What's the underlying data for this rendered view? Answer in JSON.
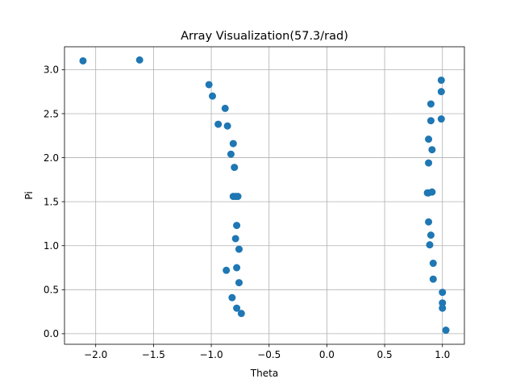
{
  "chart_data": {
    "type": "scatter",
    "title": "Array Visualization(57.3/rad)",
    "xlabel": "Theta",
    "ylabel": "Pi",
    "xlim": [
      -2.27,
      1.19
    ],
    "ylim": [
      -0.12,
      3.26
    ],
    "xticks": [
      -2.0,
      -1.5,
      -1.0,
      -0.5,
      0.0,
      0.5,
      1.0
    ],
    "xtick_labels": [
      "−2.0",
      "−1.5",
      "−1.0",
      "−0.5",
      "0.0",
      "0.5",
      "1.0"
    ],
    "yticks": [
      0.0,
      0.5,
      1.0,
      1.5,
      2.0,
      2.5,
      3.0
    ],
    "ytick_labels": [
      "0.0",
      "0.5",
      "1.0",
      "1.5",
      "2.0",
      "2.5",
      "3.0"
    ],
    "grid": true,
    "marker_color": "#1f77b4",
    "points": [
      {
        "x": -2.11,
        "y": 3.1
      },
      {
        "x": -1.62,
        "y": 3.11
      },
      {
        "x": -1.02,
        "y": 2.83
      },
      {
        "x": -0.99,
        "y": 2.7
      },
      {
        "x": -0.88,
        "y": 2.56
      },
      {
        "x": -0.94,
        "y": 2.38
      },
      {
        "x": -0.86,
        "y": 2.36
      },
      {
        "x": -0.81,
        "y": 2.16
      },
      {
        "x": -0.83,
        "y": 2.04
      },
      {
        "x": -0.8,
        "y": 1.89
      },
      {
        "x": -0.81,
        "y": 1.56
      },
      {
        "x": -0.79,
        "y": 1.56
      },
      {
        "x": -0.77,
        "y": 1.56
      },
      {
        "x": -0.78,
        "y": 1.23
      },
      {
        "x": -0.79,
        "y": 1.08
      },
      {
        "x": -0.76,
        "y": 0.96
      },
      {
        "x": -0.87,
        "y": 0.72
      },
      {
        "x": -0.78,
        "y": 0.75
      },
      {
        "x": -0.76,
        "y": 0.58
      },
      {
        "x": -0.82,
        "y": 0.41
      },
      {
        "x": -0.78,
        "y": 0.29
      },
      {
        "x": -0.74,
        "y": 0.23
      },
      {
        "x": 0.99,
        "y": 2.88
      },
      {
        "x": 0.99,
        "y": 2.75
      },
      {
        "x": 0.9,
        "y": 2.61
      },
      {
        "x": 0.99,
        "y": 2.44
      },
      {
        "x": 0.9,
        "y": 2.42
      },
      {
        "x": 0.88,
        "y": 2.21
      },
      {
        "x": 0.91,
        "y": 2.09
      },
      {
        "x": 0.88,
        "y": 1.94
      },
      {
        "x": 0.87,
        "y": 1.6
      },
      {
        "x": 0.88,
        "y": 1.6
      },
      {
        "x": 0.91,
        "y": 1.61
      },
      {
        "x": 0.88,
        "y": 1.27
      },
      {
        "x": 0.9,
        "y": 1.12
      },
      {
        "x": 0.89,
        "y": 1.01
      },
      {
        "x": 0.92,
        "y": 0.8
      },
      {
        "x": 0.92,
        "y": 0.62
      },
      {
        "x": 1.0,
        "y": 0.47
      },
      {
        "x": 1.0,
        "y": 0.35
      },
      {
        "x": 1.0,
        "y": 0.29
      },
      {
        "x": 1.03,
        "y": 0.04
      }
    ]
  }
}
